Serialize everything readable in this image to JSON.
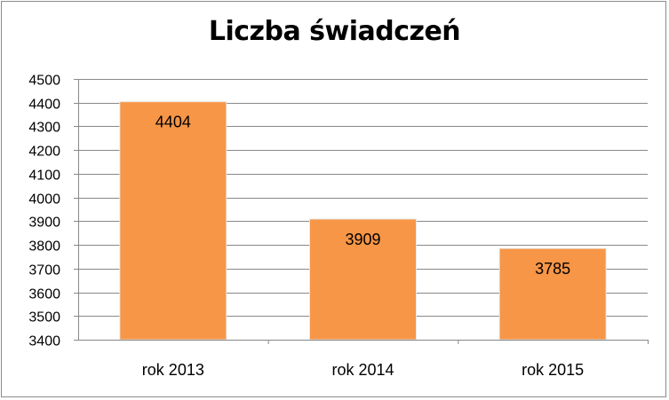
{
  "chart_data": {
    "type": "bar",
    "title": "Liczba świadczeń",
    "categories": [
      "rok 2013",
      "rok 2014",
      "rok 2015"
    ],
    "values": [
      4404,
      3909,
      3785
    ],
    "data_labels": [
      "4404",
      "3909",
      "3785"
    ],
    "ylim": [
      3400,
      4500
    ],
    "yticks": [
      "3400",
      "3500",
      "3600",
      "3700",
      "3800",
      "3900",
      "4000",
      "4100",
      "4200",
      "4300",
      "4400",
      "4500"
    ],
    "grid": true,
    "legend": "none",
    "bar_color": "#F79646",
    "gridline_color": "#888888"
  }
}
